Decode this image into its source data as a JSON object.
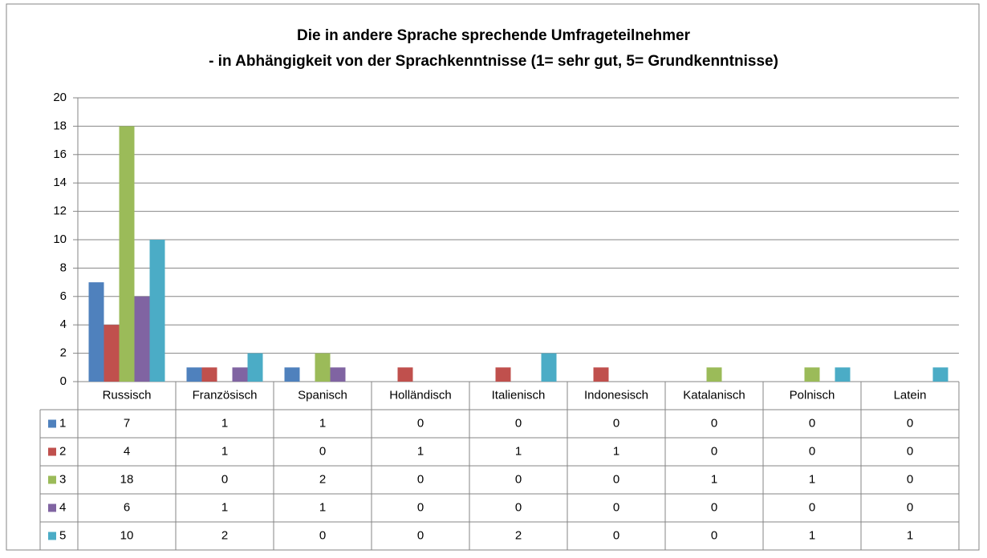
{
  "chart_data": {
    "type": "bar",
    "title": "Die in andere Sprache sprechende Umfrageteilnehmer",
    "subtitle": "- in Abhängigkeit von der Sprachkenntnisse (1= sehr gut, 5= Grundkenntnisse)",
    "categories": [
      "Russisch",
      "Französisch",
      "Spanisch",
      "Holländisch",
      "Italienisch",
      "Indonesisch",
      "Katalanisch",
      "Polnisch",
      "Latein"
    ],
    "series": [
      {
        "name": "1",
        "color": "#4f81bd",
        "values": [
          7,
          1,
          1,
          0,
          0,
          0,
          0,
          0,
          0
        ]
      },
      {
        "name": "2",
        "color": "#c0504d",
        "values": [
          4,
          1,
          0,
          1,
          1,
          1,
          0,
          0,
          0
        ]
      },
      {
        "name": "3",
        "color": "#9bbb59",
        "values": [
          18,
          0,
          2,
          0,
          0,
          0,
          1,
          1,
          0
        ]
      },
      {
        "name": "4",
        "color": "#8064a2",
        "values": [
          6,
          1,
          1,
          0,
          0,
          0,
          0,
          0,
          0
        ]
      },
      {
        "name": "5",
        "color": "#4bacc6",
        "values": [
          10,
          2,
          0,
          0,
          2,
          0,
          0,
          1,
          1
        ]
      }
    ],
    "ylim": [
      0,
      20
    ],
    "yticks": [
      0,
      2,
      4,
      6,
      8,
      10,
      12,
      14,
      16,
      18,
      20
    ],
    "grid": true
  }
}
